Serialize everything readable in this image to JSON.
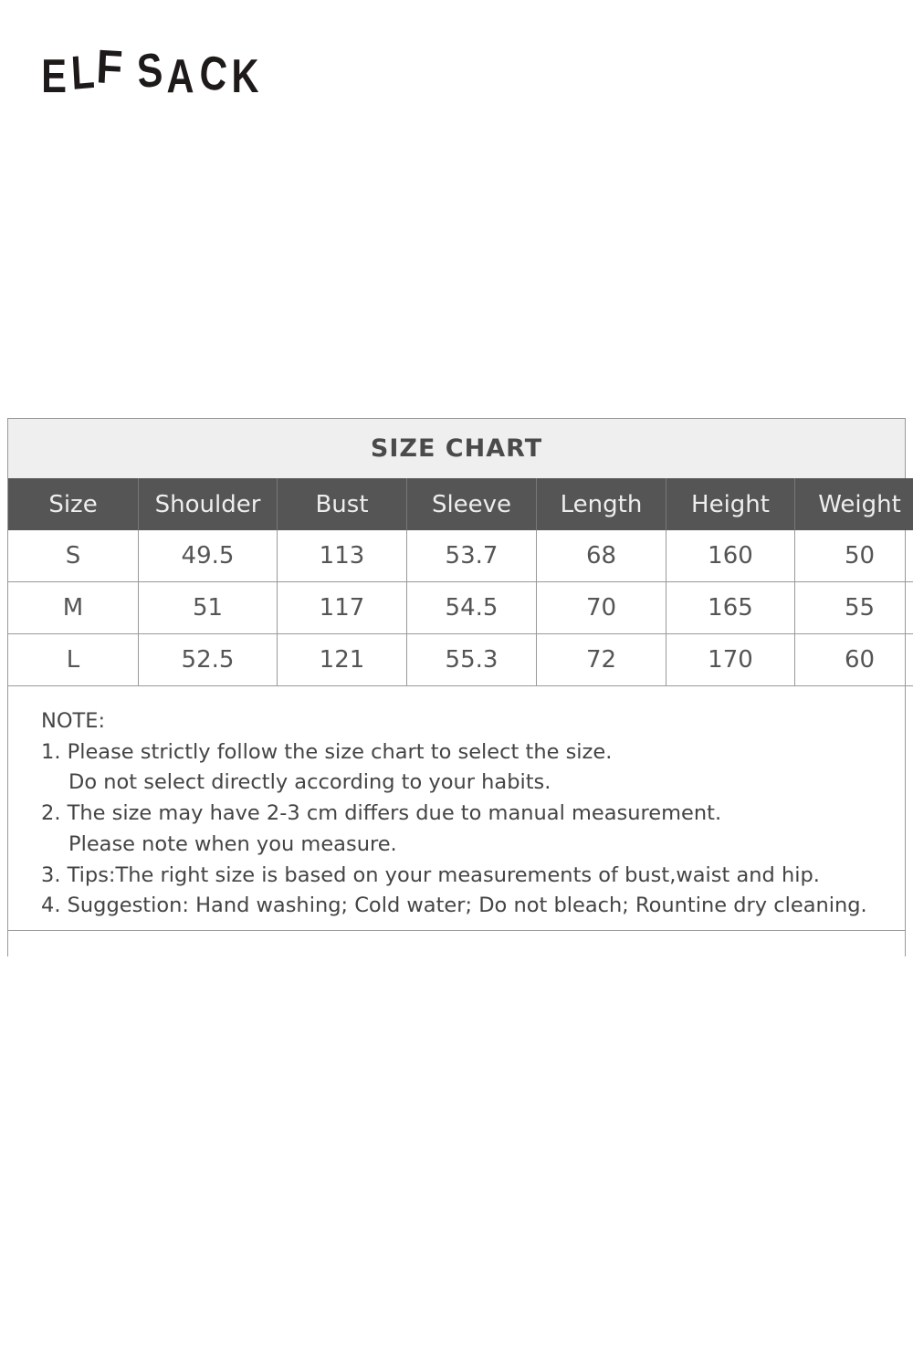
{
  "brand": {
    "logo_text": "ELFSACK"
  },
  "size_chart": {
    "title": "SIZE CHART",
    "columns": [
      "Size",
      "Shoulder",
      "Bust",
      "Sleeve",
      "Length",
      "Height",
      "Weight"
    ],
    "rows": [
      [
        "S",
        "49.5",
        "113",
        "53.7",
        "68",
        "160",
        "50"
      ],
      [
        "M",
        "51",
        "117",
        "54.5",
        "70",
        "165",
        "55"
      ],
      [
        "L",
        "52.5",
        "121",
        "55.3",
        "72",
        "170",
        "60"
      ]
    ]
  },
  "notes": {
    "heading": "NOTE:",
    "lines": [
      "1. Please strictly follow the size chart to select the size.",
      "Do not select directly according to your habits.",
      "2. The size may have 2-3 cm differs due to manual measurement.",
      "Please note when you measure.",
      "3. Tips:The right size is based on your measurements of bust,waist and hip.",
      "4. Suggestion: Hand washing; Cold water; Do not bleach; Rountine dry cleaning."
    ]
  }
}
